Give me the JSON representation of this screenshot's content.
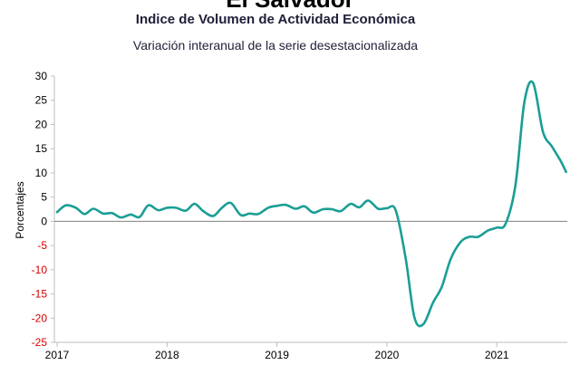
{
  "chart_data": {
    "type": "line",
    "country": "El Salvador",
    "title": "Indice de Volumen de  Actividad Económica",
    "subtitle": "Variación interanual de la serie desestacionalizada",
    "xlabel": "",
    "ylabel": "Porcentajes",
    "ylim": [
      -25,
      30
    ],
    "yticks": [
      30,
      25,
      20,
      15,
      10,
      5,
      0,
      -5,
      -10,
      -15,
      -20,
      -25
    ],
    "xlim": [
      2017,
      2021.67
    ],
    "xticks": [
      "2017",
      "2018",
      "2019",
      "2020",
      "2021"
    ],
    "grid": false,
    "colors": {
      "line": "#1a9e96",
      "axis": "#bdbdbd",
      "zero_line": "#808080",
      "positive_tick": "#000000",
      "negative_tick": "#d40000"
    },
    "series": [
      {
        "x": [
          2017.0,
          2017.08,
          2017.17,
          2017.25,
          2017.33,
          2017.42,
          2017.5,
          2017.58,
          2017.67,
          2017.75,
          2017.83,
          2017.92,
          2018.0,
          2018.08,
          2018.17,
          2018.25,
          2018.33,
          2018.42,
          2018.5,
          2018.58,
          2018.67,
          2018.75,
          2018.83,
          2018.92,
          2019.0,
          2019.08,
          2019.17,
          2019.25,
          2019.33,
          2019.42,
          2019.5,
          2019.58,
          2019.67,
          2019.75,
          2019.83,
          2019.92,
          2020.0,
          2020.08,
          2020.17,
          2020.25,
          2020.33,
          2020.42,
          2020.5,
          2020.58,
          2020.67,
          2020.75,
          2020.83,
          2020.92,
          2021.0,
          2021.08,
          2021.17,
          2021.25,
          2021.33,
          2021.42,
          2021.5,
          2021.58,
          2021.63
        ],
        "values": [
          1.9,
          3.3,
          2.8,
          1.5,
          2.6,
          1.6,
          1.7,
          0.8,
          1.4,
          0.9,
          3.3,
          2.3,
          2.8,
          2.8,
          2.2,
          3.6,
          2.1,
          1.1,
          2.8,
          3.8,
          1.3,
          1.6,
          1.5,
          2.8,
          3.2,
          3.4,
          2.6,
          3.1,
          1.8,
          2.5,
          2.5,
          2.1,
          3.6,
          2.9,
          4.3,
          2.6,
          2.7,
          2.3,
          -7.5,
          -19.8,
          -21.3,
          -16.8,
          -13.5,
          -7.8,
          -4.3,
          -3.2,
          -3.2,
          -1.9,
          -1.3,
          -0.5,
          7.5,
          24.5,
          28.6,
          18.5,
          15.5,
          12.5,
          10.2
        ]
      }
    ]
  }
}
